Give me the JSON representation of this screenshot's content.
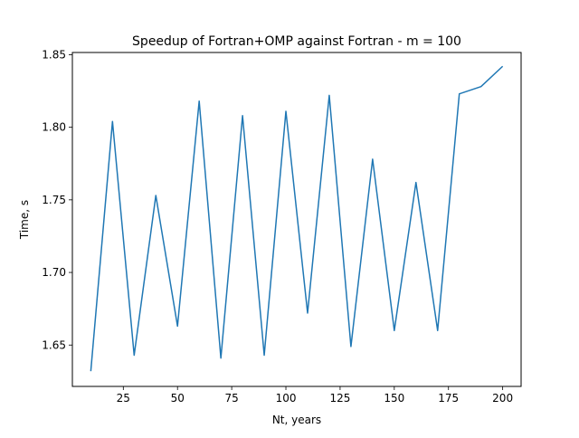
{
  "chart_data": {
    "type": "line",
    "title": "Speedup of Fortran+OMP against Fortran - m = 100",
    "xlabel": "Nt, years",
    "ylabel": "Time, s",
    "xlim": [
      1.5,
      208.5
    ],
    "ylim": [
      1.6215,
      1.8515
    ],
    "xticks": [
      25,
      50,
      75,
      100,
      125,
      150,
      175,
      200
    ],
    "xtick_labels": [
      "25",
      "50",
      "75",
      "100",
      "125",
      "150",
      "175",
      "200"
    ],
    "yticks": [
      1.65,
      1.7,
      1.75,
      1.8,
      1.85
    ],
    "ytick_labels": [
      "1.65",
      "1.70",
      "1.75",
      "1.80",
      "1.85"
    ],
    "grid": false,
    "series": [
      {
        "color": "#1f77b4",
        "x": [
          10,
          20,
          30,
          40,
          50,
          60,
          70,
          80,
          90,
          100,
          110,
          120,
          130,
          140,
          150,
          160,
          170,
          180,
          190,
          200
        ],
        "y": [
          1.632,
          1.804,
          1.643,
          1.753,
          1.663,
          1.818,
          1.641,
          1.808,
          1.643,
          1.811,
          1.672,
          1.822,
          1.649,
          1.778,
          1.66,
          1.762,
          1.66,
          1.823,
          1.828,
          1.842
        ]
      }
    ]
  }
}
